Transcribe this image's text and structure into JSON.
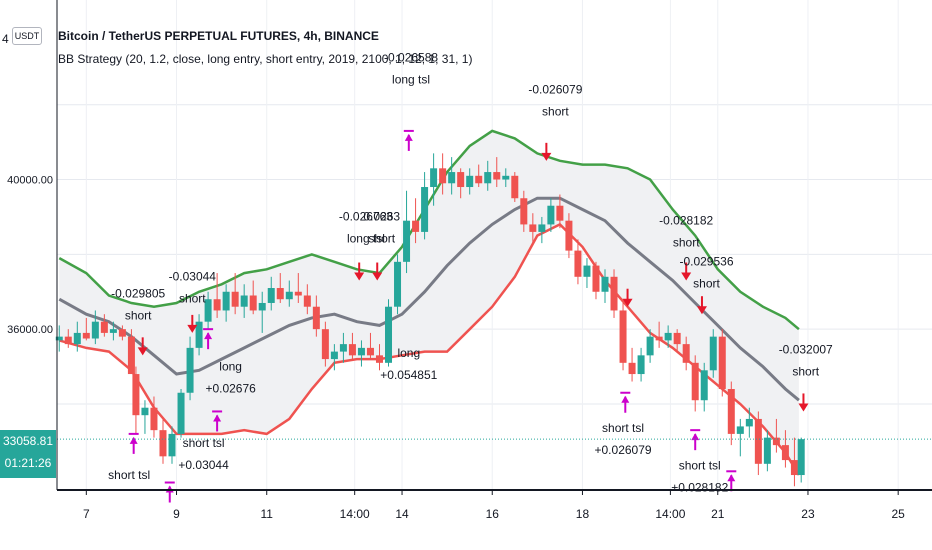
{
  "header": {
    "title": "Bitcoin / TetherUS PERPETUAL FUTURES, 4h, BINANCE",
    "indicator": "BB Strategy (20, 1.2, close, long entry, short entry, 2019, 2100, 1, 12, 1, 31, 1)",
    "currency": "USDT",
    "top_tick": "4"
  },
  "last_price": {
    "value": "33058.81",
    "countdown": "01:21:26"
  },
  "colors": {
    "up": "#26a69a",
    "down": "#ef5350",
    "upper_band": "#43a047",
    "lower_band": "#ef5350",
    "basis": "#787b86",
    "band_fill": "#f0f1f3",
    "signal_long": "#cc00cc",
    "signal_short": "#e5172a"
  },
  "chart_data": {
    "type": "candlestick",
    "x_ticks": [
      "7",
      "9",
      "11",
      "14:00",
      "14",
      "16",
      "18",
      "14:00",
      "21",
      "23",
      "25"
    ],
    "y_ticks": [
      "40000.00",
      "36000.00"
    ],
    "ylim": [
      31700,
      44800
    ],
    "xlim": [
      6.35,
      25.75
    ],
    "last_price": 33058.81,
    "candles": [
      {
        "t": 6.4,
        "o": 35700,
        "h": 36100,
        "l": 35400,
        "c": 35800
      },
      {
        "t": 6.6,
        "o": 35800,
        "h": 36000,
        "l": 35500,
        "c": 35600
      },
      {
        "t": 6.8,
        "o": 35600,
        "h": 36200,
        "l": 35400,
        "c": 35900
      },
      {
        "t": 7.0,
        "o": 35900,
        "h": 36300,
        "l": 35700,
        "c": 35750
      },
      {
        "t": 7.2,
        "o": 35750,
        "h": 36500,
        "l": 35600,
        "c": 36200
      },
      {
        "t": 7.4,
        "o": 36200,
        "h": 36400,
        "l": 35800,
        "c": 35900
      },
      {
        "t": 7.6,
        "o": 35900,
        "h": 36200,
        "l": 35700,
        "c": 36000
      },
      {
        "t": 7.8,
        "o": 36000,
        "h": 36100,
        "l": 35700,
        "c": 35800
      },
      {
        "t": 8.0,
        "o": 35800,
        "h": 36000,
        "l": 34900,
        "c": 34800
      },
      {
        "t": 8.1,
        "o": 34800,
        "h": 35000,
        "l": 33200,
        "c": 33700
      },
      {
        "t": 8.3,
        "o": 33700,
        "h": 34100,
        "l": 33200,
        "c": 33900
      },
      {
        "t": 8.5,
        "o": 33900,
        "h": 34200,
        "l": 33100,
        "c": 33300
      },
      {
        "t": 8.7,
        "o": 33300,
        "h": 33600,
        "l": 32400,
        "c": 32600
      },
      {
        "t": 8.9,
        "o": 32600,
        "h": 33400,
        "l": 32400,
        "c": 33200
      },
      {
        "t": 9.1,
        "o": 33200,
        "h": 34400,
        "l": 33100,
        "c": 34300
      },
      {
        "t": 9.3,
        "o": 34300,
        "h": 35800,
        "l": 34100,
        "c": 35500
      },
      {
        "t": 9.5,
        "o": 35500,
        "h": 36400,
        "l": 35300,
        "c": 36200
      },
      {
        "t": 9.7,
        "o": 36200,
        "h": 37000,
        "l": 36000,
        "c": 36800
      },
      {
        "t": 9.9,
        "o": 36800,
        "h": 37500,
        "l": 36300,
        "c": 36500
      },
      {
        "t": 10.1,
        "o": 36500,
        "h": 37200,
        "l": 36200,
        "c": 37000
      },
      {
        "t": 10.3,
        "o": 37000,
        "h": 37500,
        "l": 36400,
        "c": 36600
      },
      {
        "t": 10.5,
        "o": 36600,
        "h": 37200,
        "l": 36300,
        "c": 36900
      },
      {
        "t": 10.7,
        "o": 36900,
        "h": 37300,
        "l": 36400,
        "c": 36500
      },
      {
        "t": 10.9,
        "o": 36500,
        "h": 37000,
        "l": 35900,
        "c": 36700
      },
      {
        "t": 11.1,
        "o": 36700,
        "h": 37400,
        "l": 36500,
        "c": 37100
      },
      {
        "t": 11.3,
        "o": 37100,
        "h": 37500,
        "l": 36700,
        "c": 36800
      },
      {
        "t": 11.5,
        "o": 36800,
        "h": 37300,
        "l": 36600,
        "c": 37000
      },
      {
        "t": 11.7,
        "o": 37000,
        "h": 37500,
        "l": 36700,
        "c": 36900
      },
      {
        "t": 11.9,
        "o": 36900,
        "h": 37200,
        "l": 36400,
        "c": 36600
      },
      {
        "t": 12.1,
        "o": 36600,
        "h": 36900,
        "l": 35800,
        "c": 36000
      },
      {
        "t": 12.3,
        "o": 36000,
        "h": 36200,
        "l": 35000,
        "c": 35200
      },
      {
        "t": 12.5,
        "o": 35200,
        "h": 35600,
        "l": 34900,
        "c": 35400
      },
      {
        "t": 12.7,
        "o": 35400,
        "h": 35900,
        "l": 35100,
        "c": 35600
      },
      {
        "t": 12.9,
        "o": 35600,
        "h": 35900,
        "l": 35200,
        "c": 35300
      },
      {
        "t": 13.1,
        "o": 35300,
        "h": 35700,
        "l": 35000,
        "c": 35500
      },
      {
        "t": 13.3,
        "o": 35500,
        "h": 35900,
        "l": 35200,
        "c": 35300
      },
      {
        "t": 13.5,
        "o": 35300,
        "h": 35600,
        "l": 34900,
        "c": 35100
      },
      {
        "t": 13.7,
        "o": 35100,
        "h": 36800,
        "l": 35000,
        "c": 36600
      },
      {
        "t": 13.9,
        "o": 36600,
        "h": 38000,
        "l": 36400,
        "c": 37800
      },
      {
        "t": 14.1,
        "o": 37800,
        "h": 39700,
        "l": 37500,
        "c": 38900
      },
      {
        "t": 14.3,
        "o": 38900,
        "h": 39500,
        "l": 38300,
        "c": 38600
      },
      {
        "t": 14.5,
        "o": 38600,
        "h": 40200,
        "l": 38400,
        "c": 39800
      },
      {
        "t": 14.7,
        "o": 39800,
        "h": 40700,
        "l": 39300,
        "c": 40300
      },
      {
        "t": 14.9,
        "o": 40300,
        "h": 40700,
        "l": 39600,
        "c": 39900
      },
      {
        "t": 15.1,
        "o": 39900,
        "h": 40600,
        "l": 39600,
        "c": 40200
      },
      {
        "t": 15.3,
        "o": 40200,
        "h": 40300,
        "l": 39500,
        "c": 39800
      },
      {
        "t": 15.5,
        "o": 39800,
        "h": 40300,
        "l": 39600,
        "c": 40100
      },
      {
        "t": 15.7,
        "o": 40100,
        "h": 40400,
        "l": 39800,
        "c": 39900
      },
      {
        "t": 15.9,
        "o": 39900,
        "h": 40500,
        "l": 39700,
        "c": 40200
      },
      {
        "t": 16.1,
        "o": 40200,
        "h": 40600,
        "l": 39800,
        "c": 40000
      },
      {
        "t": 16.3,
        "o": 40000,
        "h": 40300,
        "l": 39800,
        "c": 40100
      },
      {
        "t": 16.5,
        "o": 40100,
        "h": 40200,
        "l": 39400,
        "c": 39500
      },
      {
        "t": 16.7,
        "o": 39500,
        "h": 39700,
        "l": 38600,
        "c": 38800
      },
      {
        "t": 16.9,
        "o": 38800,
        "h": 39100,
        "l": 38300,
        "c": 38600
      },
      {
        "t": 17.1,
        "o": 38600,
        "h": 39000,
        "l": 38300,
        "c": 38800
      },
      {
        "t": 17.3,
        "o": 38800,
        "h": 39500,
        "l": 38600,
        "c": 39300
      },
      {
        "t": 17.5,
        "o": 39300,
        "h": 39600,
        "l": 38700,
        "c": 38900
      },
      {
        "t": 17.7,
        "o": 38900,
        "h": 39100,
        "l": 37900,
        "c": 38100
      },
      {
        "t": 17.9,
        "o": 38100,
        "h": 38400,
        "l": 37200,
        "c": 37400
      },
      {
        "t": 18.1,
        "o": 37400,
        "h": 37900,
        "l": 37100,
        "c": 37700
      },
      {
        "t": 18.3,
        "o": 37700,
        "h": 37800,
        "l": 36800,
        "c": 37000
      },
      {
        "t": 18.5,
        "o": 37000,
        "h": 37600,
        "l": 36700,
        "c": 37400
      },
      {
        "t": 18.7,
        "o": 37400,
        "h": 37600,
        "l": 36300,
        "c": 36500
      },
      {
        "t": 18.9,
        "o": 36500,
        "h": 36700,
        "l": 34900,
        "c": 35100
      },
      {
        "t": 19.1,
        "o": 35100,
        "h": 35500,
        "l": 34600,
        "c": 34800
      },
      {
        "t": 19.3,
        "o": 34800,
        "h": 35500,
        "l": 34600,
        "c": 35300
      },
      {
        "t": 19.5,
        "o": 35300,
        "h": 36000,
        "l": 35100,
        "c": 35800
      },
      {
        "t": 19.7,
        "o": 35800,
        "h": 36200,
        "l": 35500,
        "c": 35700
      },
      {
        "t": 19.9,
        "o": 35700,
        "h": 36100,
        "l": 35500,
        "c": 35900
      },
      {
        "t": 20.1,
        "o": 35900,
        "h": 36000,
        "l": 35400,
        "c": 35600
      },
      {
        "t": 20.3,
        "o": 35600,
        "h": 35800,
        "l": 34900,
        "c": 35100
      },
      {
        "t": 20.5,
        "o": 35100,
        "h": 35300,
        "l": 33800,
        "c": 34100
      },
      {
        "t": 20.7,
        "o": 34100,
        "h": 35100,
        "l": 33800,
        "c": 34900
      },
      {
        "t": 20.9,
        "o": 34900,
        "h": 36000,
        "l": 34700,
        "c": 35800
      },
      {
        "t": 21.1,
        "o": 35800,
        "h": 36000,
        "l": 34200,
        "c": 34400
      },
      {
        "t": 21.3,
        "o": 34400,
        "h": 34600,
        "l": 32900,
        "c": 33200
      },
      {
        "t": 21.5,
        "o": 33200,
        "h": 33600,
        "l": 32600,
        "c": 33400
      },
      {
        "t": 21.7,
        "o": 33400,
        "h": 33900,
        "l": 33100,
        "c": 33600
      },
      {
        "t": 21.9,
        "o": 33600,
        "h": 33800,
        "l": 32100,
        "c": 32400
      },
      {
        "t": 22.1,
        "o": 32400,
        "h": 33300,
        "l": 32200,
        "c": 33100
      },
      {
        "t": 22.3,
        "o": 33100,
        "h": 33600,
        "l": 32700,
        "c": 32900
      },
      {
        "t": 22.5,
        "o": 32900,
        "h": 33300,
        "l": 32300,
        "c": 32500
      },
      {
        "t": 22.7,
        "o": 32500,
        "h": 33100,
        "l": 31800,
        "c": 32100
      },
      {
        "t": 22.85,
        "o": 32100,
        "h": 33100,
        "l": 31900,
        "c": 33058.81
      }
    ],
    "upper_band": [
      [
        6.4,
        37900
      ],
      [
        7.0,
        37500
      ],
      [
        7.5,
        36900
      ],
      [
        8.0,
        36700
      ],
      [
        8.5,
        36600
      ],
      [
        9.0,
        36700
      ],
      [
        9.5,
        37000
      ],
      [
        10.0,
        37200
      ],
      [
        10.5,
        37500
      ],
      [
        11.0,
        37600
      ],
      [
        11.5,
        37800
      ],
      [
        12.0,
        38000
      ],
      [
        12.5,
        37800
      ],
      [
        13.0,
        37600
      ],
      [
        13.5,
        37500
      ],
      [
        14.0,
        38200
      ],
      [
        14.5,
        39200
      ],
      [
        15.0,
        40200
      ],
      [
        15.5,
        40900
      ],
      [
        16.0,
        41300
      ],
      [
        16.5,
        41100
      ],
      [
        17.0,
        40700
      ],
      [
        17.5,
        40500
      ],
      [
        18.0,
        40400
      ],
      [
        18.5,
        40400
      ],
      [
        19.0,
        40300
      ],
      [
        19.5,
        40000
      ],
      [
        20.0,
        39200
      ],
      [
        20.5,
        38500
      ],
      [
        21.0,
        37600
      ],
      [
        21.5,
        37000
      ],
      [
        22.0,
        36600
      ],
      [
        22.5,
        36300
      ],
      [
        22.8,
        36000
      ]
    ],
    "basis": [
      [
        6.4,
        36800
      ],
      [
        7.0,
        36400
      ],
      [
        7.5,
        36200
      ],
      [
        8.0,
        35800
      ],
      [
        8.5,
        35300
      ],
      [
        9.0,
        34800
      ],
      [
        9.5,
        34900
      ],
      [
        10.0,
        35200
      ],
      [
        10.5,
        35500
      ],
      [
        11.0,
        35800
      ],
      [
        11.5,
        36100
      ],
      [
        12.0,
        36300
      ],
      [
        12.5,
        36400
      ],
      [
        13.0,
        36200
      ],
      [
        13.5,
        36100
      ],
      [
        14.0,
        36400
      ],
      [
        14.5,
        37000
      ],
      [
        15.0,
        37700
      ],
      [
        15.5,
        38300
      ],
      [
        16.0,
        38800
      ],
      [
        16.5,
        39200
      ],
      [
        17.0,
        39500
      ],
      [
        17.5,
        39500
      ],
      [
        18.0,
        39200
      ],
      [
        18.5,
        38900
      ],
      [
        19.0,
        38300
      ],
      [
        19.5,
        37800
      ],
      [
        20.0,
        37300
      ],
      [
        20.5,
        36700
      ],
      [
        21.0,
        36100
      ],
      [
        21.5,
        35500
      ],
      [
        22.0,
        35000
      ],
      [
        22.5,
        34400
      ],
      [
        22.8,
        34100
      ]
    ],
    "lower_band": [
      [
        6.4,
        35700
      ],
      [
        7.0,
        35500
      ],
      [
        7.5,
        35400
      ],
      [
        8.0,
        34900
      ],
      [
        8.5,
        33900
      ],
      [
        9.0,
        33200
      ],
      [
        9.5,
        33200
      ],
      [
        10.0,
        33200
      ],
      [
        10.5,
        33300
      ],
      [
        11.0,
        33200
      ],
      [
        11.5,
        33600
      ],
      [
        12.0,
        34400
      ],
      [
        12.5,
        35100
      ],
      [
        13.0,
        35200
      ],
      [
        13.5,
        35200
      ],
      [
        14.0,
        35300
      ],
      [
        14.5,
        35400
      ],
      [
        15.0,
        35400
      ],
      [
        15.5,
        36000
      ],
      [
        16.0,
        36600
      ],
      [
        16.5,
        37400
      ],
      [
        17.0,
        38500
      ],
      [
        17.5,
        38800
      ],
      [
        18.0,
        38200
      ],
      [
        18.5,
        37300
      ],
      [
        19.0,
        36600
      ],
      [
        19.5,
        35900
      ],
      [
        20.0,
        35500
      ],
      [
        20.5,
        35000
      ],
      [
        21.0,
        34500
      ],
      [
        21.5,
        34000
      ],
      [
        22.0,
        33400
      ],
      [
        22.5,
        32700
      ],
      [
        22.8,
        32100
      ]
    ],
    "annotations": [
      {
        "x": 8.15,
        "y": 36850,
        "lines": [
          "-0.029805",
          "short"
        ]
      },
      {
        "x": 9.35,
        "y": 37300,
        "lines": [
          "-0.03044",
          "short"
        ]
      },
      {
        "x": 13.2,
        "y": 38900,
        "lines": [
          "-0.026763",
          "long tsl"
        ]
      },
      {
        "x": 13.55,
        "y": 38900,
        "lines": [
          "0.0263",
          "short"
        ]
      },
      {
        "x": 14.2,
        "y": 43150,
        "lines": [
          "-0.026588",
          "long tsl"
        ]
      },
      {
        "x": 17.4,
        "y": 42300,
        "lines": [
          "-0.026079",
          "short"
        ]
      },
      {
        "x": 20.3,
        "y": 38800,
        "lines": [
          "-0.028182",
          "short"
        ]
      },
      {
        "x": 20.75,
        "y": 37700,
        "lines": [
          "-0.029536",
          "short"
        ]
      },
      {
        "x": 22.95,
        "y": 35350,
        "lines": [
          "-0.032007",
          "short"
        ]
      },
      {
        "x": 10.2,
        "y": 34900,
        "lines": [
          "long",
          "+0.02676"
        ]
      },
      {
        "x": 14.15,
        "y": 35250,
        "lines": [
          "long",
          "+0.054851"
        ]
      },
      {
        "x": 9.6,
        "y": 32850,
        "lines": [
          "short tsl",
          "+0.03044"
        ]
      },
      {
        "x": 18.9,
        "y": 33250,
        "lines": [
          "short tsl",
          "+0.026079"
        ]
      },
      {
        "x": 20.6,
        "y": 32250,
        "lines": [
          "short tsl",
          "+0.028182"
        ]
      },
      {
        "x": 7.95,
        "y": 32000,
        "lines": [
          "short tsl"
        ]
      }
    ],
    "signals": [
      {
        "x": 8.25,
        "y": 35300,
        "kind": "short"
      },
      {
        "x": 9.35,
        "y": 35900,
        "kind": "short"
      },
      {
        "x": 13.05,
        "y": 37300,
        "kind": "short"
      },
      {
        "x": 13.45,
        "y": 37300,
        "kind": "short"
      },
      {
        "x": 17.2,
        "y": 40500,
        "kind": "short"
      },
      {
        "x": 19.0,
        "y": 36600,
        "kind": "short"
      },
      {
        "x": 20.3,
        "y": 37300,
        "kind": "short"
      },
      {
        "x": 20.65,
        "y": 36400,
        "kind": "short"
      },
      {
        "x": 22.9,
        "y": 33800,
        "kind": "short"
      },
      {
        "x": 14.15,
        "y": 41300,
        "kind": "long"
      },
      {
        "x": 9.7,
        "y": 36000,
        "kind": "long"
      },
      {
        "x": 8.05,
        "y": 33200,
        "kind": "long"
      },
      {
        "x": 8.85,
        "y": 31900,
        "kind": "long"
      },
      {
        "x": 9.9,
        "y": 33800,
        "kind": "long"
      },
      {
        "x": 18.95,
        "y": 34300,
        "kind": "long"
      },
      {
        "x": 20.5,
        "y": 33300,
        "kind": "long"
      },
      {
        "x": 21.3,
        "y": 32200,
        "kind": "long"
      }
    ]
  }
}
